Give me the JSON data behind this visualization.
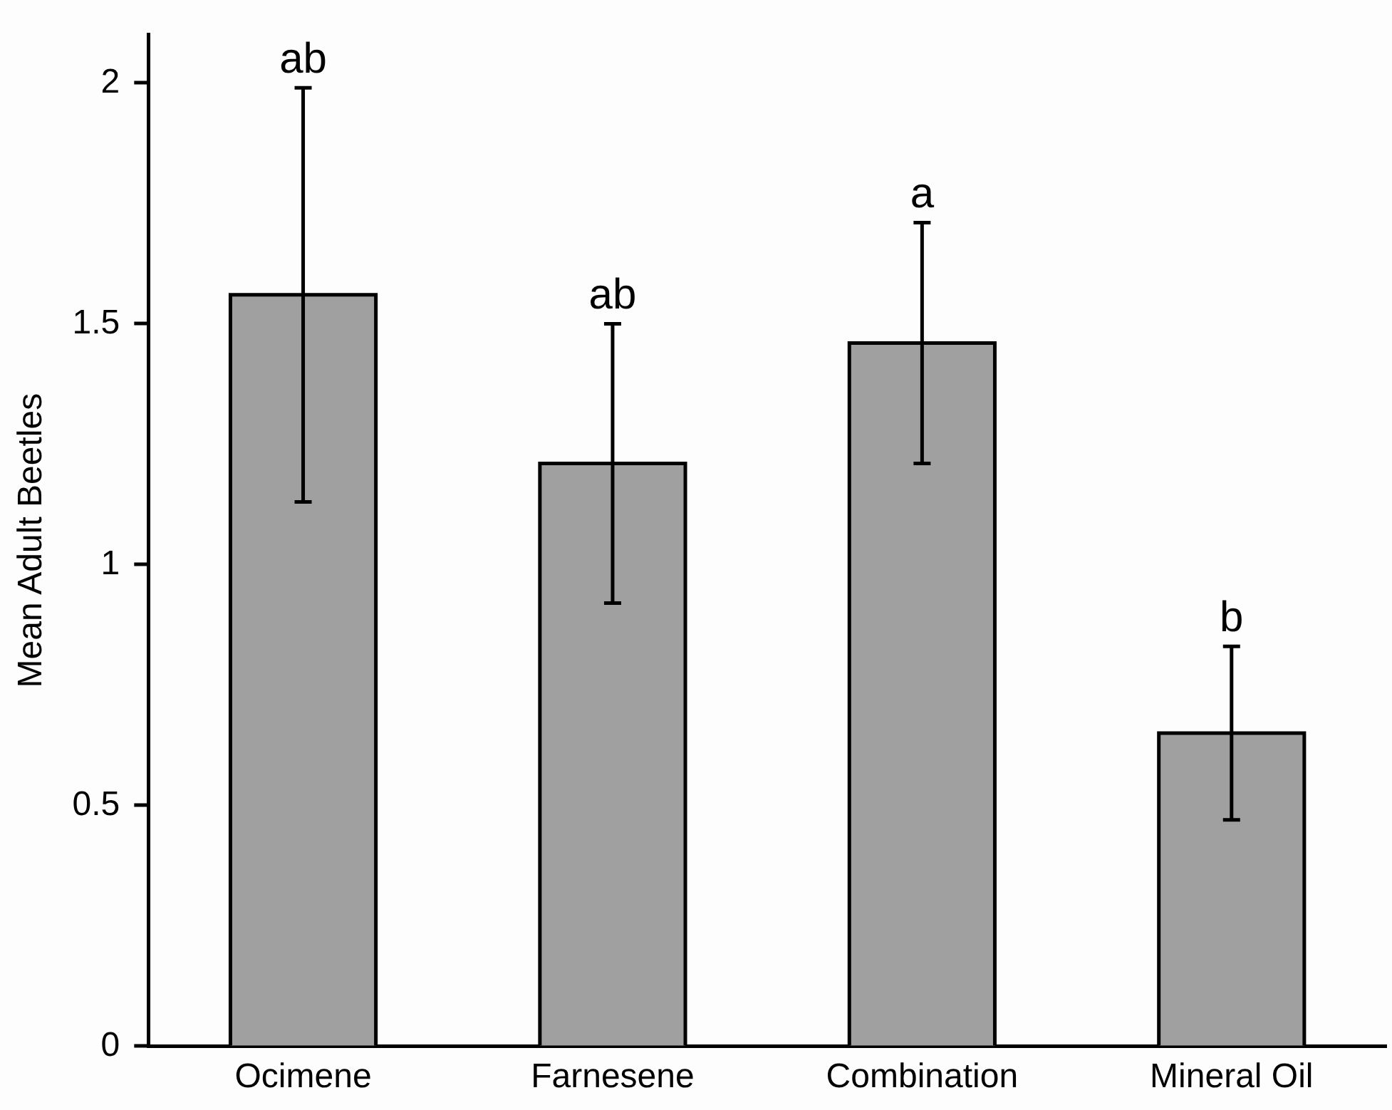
{
  "chart_data": {
    "type": "bar",
    "ylabel": "Mean Adult Beetles",
    "categories": [
      "Ocimene",
      "Farnesene",
      "Combination",
      "Mineral Oil"
    ],
    "values": [
      1.56,
      1.21,
      1.46,
      0.65
    ],
    "errors": [
      0.43,
      0.29,
      0.25,
      0.18
    ],
    "color": "#a0a0a0",
    "ylim": [
      0,
      2.1
    ],
    "yticks": [
      0,
      0.5,
      1,
      1.5,
      2
    ],
    "grid": false,
    "legend": false,
    "annotations": [
      {
        "text": "ab",
        "x": "Ocimene",
        "y": 1.99
      },
      {
        "text": "ab",
        "x": "Farnesene",
        "y": 1.5
      },
      {
        "text": "a",
        "x": "Combination",
        "y": 1.71
      },
      {
        "text": "b",
        "x": "Mineral Oil",
        "y": 0.83
      }
    ]
  }
}
